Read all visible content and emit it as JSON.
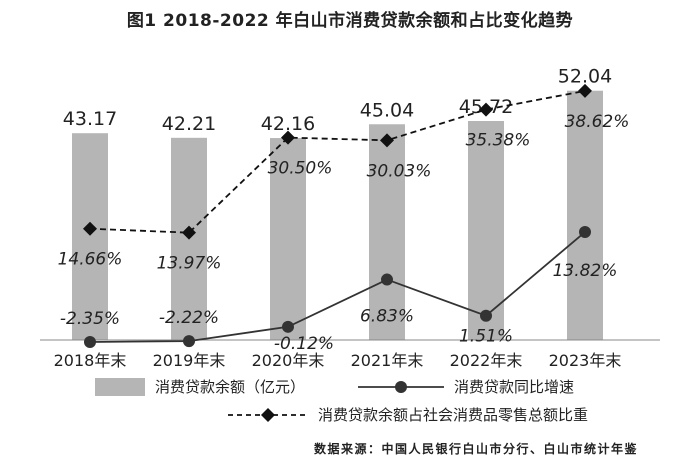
{
  "title": "图1 2018-2022 年白山市消费贷款余额和占比变化趋势",
  "source": "数据来源：中国人民银行白山市分行、白山市统计年鉴",
  "legend": {
    "bar": "消费贷款余额（亿元）",
    "line": "消费贷款同比增速",
    "dashed": "消费贷款余额占社会消费品零售总额比重"
  },
  "colors": {
    "bar": "#b5b5b5",
    "line": "#333333",
    "dashed": "#111111",
    "text": "#222222"
  },
  "chart_data": {
    "type": "bar",
    "categories": [
      "2018年末",
      "2019年末",
      "2020年末",
      "2021年末",
      "2022年末",
      "2023年末"
    ],
    "series": [
      {
        "name": "消费贷款余额（亿元）",
        "type": "bar",
        "values": [
          43.17,
          42.21,
          42.16,
          45.04,
          45.72,
          52.04
        ],
        "labels": [
          "43.17",
          "42.21",
          "42.16",
          "45.04",
          "45.72",
          "52.04"
        ]
      },
      {
        "name": "消费贷款同比增速",
        "type": "line",
        "values": [
          -2.35,
          -2.22,
          -0.12,
          6.83,
          1.51,
          13.82
        ],
        "labels": [
          "-2.35%",
          "-2.22%",
          "-0.12%",
          "6.83%",
          "1.51%",
          "13.82%"
        ]
      },
      {
        "name": "消费贷款余额占社会消费品零售总额比重",
        "type": "line-dashed",
        "values": [
          14.66,
          13.97,
          30.5,
          30.03,
          35.38,
          38.62
        ],
        "labels": [
          "14.66%",
          "13.97%",
          "30.50%",
          "30.03%",
          "35.38%",
          "38.62%"
        ]
      }
    ]
  }
}
